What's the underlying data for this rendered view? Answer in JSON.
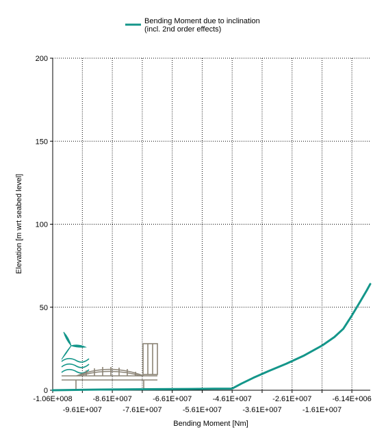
{
  "chart_data": {
    "type": "line",
    "title": "",
    "xlabel": "Bending Moment [Nm]",
    "ylabel": "Elevation [m wrt seabed level]",
    "xlim": [
      -106000000,
      0
    ],
    "ylim": [
      0,
      200
    ],
    "grid": true,
    "legend": {
      "placement": "top-center",
      "lines": [
        "Bending Moment due to inclination",
        "(incl. 2nd order effects)"
      ]
    },
    "x_ticks": [
      {
        "value": -106000000,
        "label": "-1.06E+008",
        "row": 0
      },
      {
        "value": -96100000,
        "label": "-9.61E+007",
        "row": 1
      },
      {
        "value": -86100000,
        "label": "-8.61E+007",
        "row": 0
      },
      {
        "value": -76100000,
        "label": "-7.61E+007",
        "row": 1
      },
      {
        "value": -66100000,
        "label": "-6.61E+007",
        "row": 0
      },
      {
        "value": -56100000,
        "label": "-5.61E+007",
        "row": 1
      },
      {
        "value": -46100000,
        "label": "-4.61E+007",
        "row": 0
      },
      {
        "value": -36100000,
        "label": "-3.61E+007",
        "row": 1
      },
      {
        "value": -26100000,
        "label": "-2.61E+007",
        "row": 0
      },
      {
        "value": -16100000,
        "label": "-1.61E+007",
        "row": 1
      },
      {
        "value": -6140000,
        "label": "-6.14E+006",
        "row": 0
      }
    ],
    "y_ticks": [
      {
        "value": 0,
        "label": "0"
      },
      {
        "value": 50,
        "label": "50"
      },
      {
        "value": 100,
        "label": "100"
      },
      {
        "value": 150,
        "label": "150"
      },
      {
        "value": 200,
        "label": "200"
      }
    ],
    "series": [
      {
        "name": "Bending Moment due to inclination (incl. 2nd order effects)",
        "color": "#14968a",
        "x": [
          -106000000,
          -90000000,
          -75000000,
          -60000000,
          -52000000,
          -46100000,
          -43000000,
          -39000000,
          -34000000,
          -28000000,
          -22000000,
          -16000000,
          -12000000,
          -9000000,
          -6140000,
          -3500000,
          -1200000,
          0
        ],
        "y": [
          0,
          0.4,
          0.6,
          0.8,
          0.9,
          1.0,
          4,
          7.5,
          11.5,
          16,
          21,
          27,
          32,
          37,
          45,
          53,
          60,
          64
        ]
      }
    ]
  }
}
